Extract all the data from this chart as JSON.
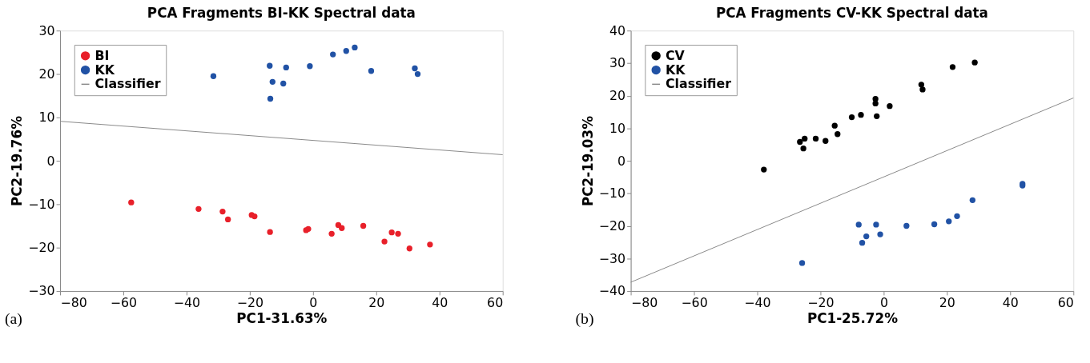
{
  "chart_data": [
    {
      "type": "scatter",
      "title": "PCA Fragments BI-KK Spectral data",
      "xlabel": "PC1-31.63%",
      "ylabel": "PC2-19.76%",
      "xlim": [
        -80,
        60
      ],
      "ylim": [
        -30,
        30
      ],
      "xticks": [
        -80,
        -60,
        -40,
        -20,
        0,
        20,
        40,
        60
      ],
      "yticks": [
        -30,
        -20,
        -10,
        0,
        10,
        20,
        30
      ],
      "grid": false,
      "legend": "top left",
      "marker": "circle",
      "annotations": [
        "(a)"
      ],
      "series": [
        {
          "name": "BI",
          "color": "#e8202a",
          "x": [
            -57.5,
            -36.2,
            -28.6,
            -26.9,
            -19.4,
            -18.5,
            -13.6,
            -2.2,
            -1.5,
            5.9,
            8.0,
            9.1,
            15.9,
            22.6,
            24.9,
            26.9,
            30.5,
            37.0
          ],
          "values": [
            -9.6,
            -11.1,
            -11.7,
            -13.5,
            -12.5,
            -12.8,
            -16.4,
            -16.0,
            -15.7,
            -16.8,
            -14.8,
            -15.5,
            -15.0,
            -18.6,
            -16.5,
            -16.8,
            -20.2,
            -19.3
          ]
        },
        {
          "name": "KK",
          "color": "#2152a5",
          "x": [
            -31.5,
            -13.7,
            -12.8,
            -13.5,
            -9.4,
            -8.5,
            -1.0,
            6.3,
            10.5,
            13.2,
            18.4,
            32.2,
            33.1
          ],
          "values": [
            19.5,
            21.9,
            18.2,
            14.3,
            17.8,
            21.5,
            21.8,
            24.5,
            25.3,
            26.1,
            20.7,
            21.3,
            20.0
          ]
        },
        {
          "name": "Classifier",
          "type": "line",
          "color": "#888888",
          "x": [
            -80,
            60
          ],
          "values": [
            9.1,
            1.4
          ],
          "marker": "none"
        }
      ]
    },
    {
      "type": "scatter",
      "title": "PCA Fragments CV-KK Spectral data",
      "xlabel": "PC1-25.72%",
      "ylabel": "PC2-19.03%",
      "xlim": [
        -80,
        60
      ],
      "ylim": [
        -40,
        40
      ],
      "xticks": [
        -80,
        -60,
        -40,
        -20,
        0,
        20,
        40,
        60
      ],
      "yticks": [
        -40,
        -30,
        -20,
        -10,
        0,
        10,
        20,
        30,
        40
      ],
      "grid": false,
      "legend": "top left",
      "marker": "circle",
      "annotations": [
        "(b)"
      ],
      "series": [
        {
          "name": "CV",
          "color": "#000000",
          "x": [
            -37.9,
            -26.5,
            -25.4,
            -25.0,
            -21.5,
            -18.4,
            -15.5,
            -14.6,
            -10.1,
            -7.2,
            -2.6,
            -2.6,
            -2.2,
            1.9,
            11.9,
            12.3,
            21.8,
            28.8
          ],
          "values": [
            -2.7,
            5.8,
            3.8,
            6.8,
            6.8,
            6.1,
            10.8,
            8.2,
            13.4,
            14.1,
            19.0,
            17.6,
            13.7,
            16.8,
            23.4,
            21.9,
            28.8,
            30.2
          ]
        },
        {
          "name": "KK",
          "color": "#2152a5",
          "x": [
            -25.8,
            -7.9,
            -6.8,
            -5.5,
            -2.4,
            -1.1,
            7.2,
            16.0,
            20.6,
            23.2,
            28.1,
            43.9,
            43.9
          ],
          "values": [
            -31.4,
            -19.6,
            -25.2,
            -23.2,
            -19.6,
            -22.6,
            -20.0,
            -19.5,
            -18.6,
            -17.0,
            -12.1,
            -7.1,
            -7.6
          ]
        },
        {
          "name": "Classifier",
          "type": "line",
          "color": "#888888",
          "x": [
            -80,
            60
          ],
          "values": [
            -37.3,
            19.3
          ],
          "marker": "none"
        }
      ]
    }
  ]
}
